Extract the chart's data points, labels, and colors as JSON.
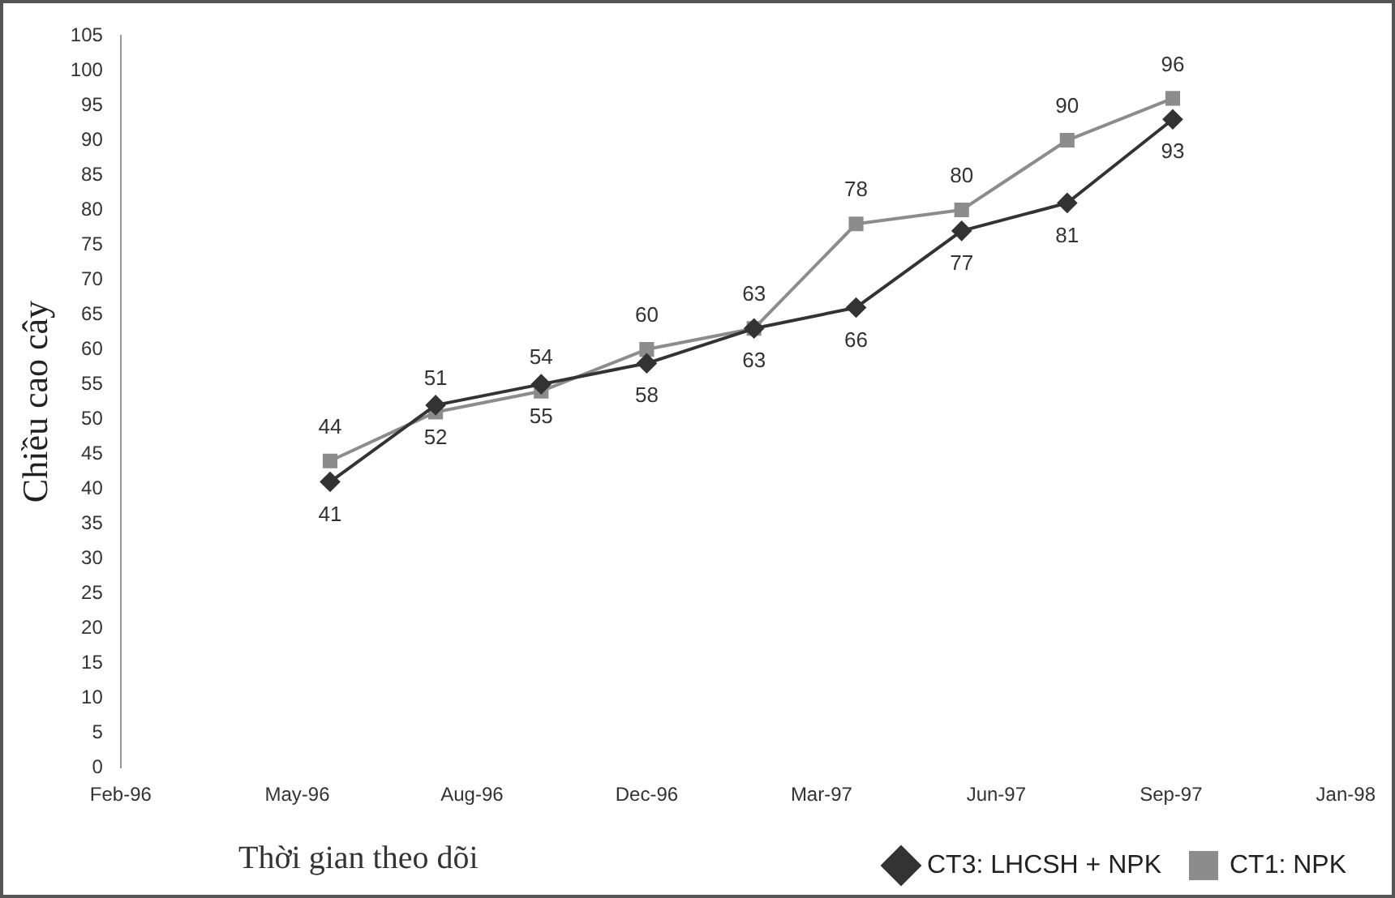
{
  "chart_data": {
    "type": "line",
    "xlabel": "Thời gian theo dõi",
    "ylabel": "Chiều cao cây",
    "x": [
      "1996-06-01",
      "1996-08-01",
      "1996-10-01",
      "1996-12-01",
      "1997-02-01",
      "1997-04-01",
      "1997-06-01",
      "1997-08-01",
      "1997-10-01"
    ],
    "xlim": [
      "1996-02-01",
      "1998-01-09"
    ],
    "xticks": [
      {
        "value": "1996-02-01",
        "label": "Feb-96"
      },
      {
        "value": "1996-05-13",
        "label": "May-96"
      },
      {
        "value": "1996-08-22",
        "label": "Aug-96"
      },
      {
        "value": "1996-12-01",
        "label": "Dec-96"
      },
      {
        "value": "1997-03-12",
        "label": "Mar-97"
      },
      {
        "value": "1997-06-21",
        "label": "Jun-97"
      },
      {
        "value": "1997-09-30",
        "label": "Sep-97"
      },
      {
        "value": "1998-01-09",
        "label": "Jan-98"
      }
    ],
    "ylim": [
      0,
      105
    ],
    "yticks": [
      0,
      5,
      10,
      15,
      20,
      25,
      30,
      35,
      40,
      45,
      50,
      55,
      60,
      65,
      70,
      75,
      80,
      85,
      90,
      95,
      100,
      105
    ],
    "series": [
      {
        "name": "CT3: LHCSH + NPK",
        "color": "#333333",
        "marker": "diamond",
        "values": [
          41,
          52,
          55,
          58,
          63,
          66,
          77,
          81,
          93
        ]
      },
      {
        "name": "CT1: NPK",
        "color": "#8c8c8c",
        "marker": "square",
        "values": [
          44,
          51,
          54,
          60,
          63,
          78,
          80,
          90,
          96
        ]
      }
    ],
    "data_labels": true,
    "grid": false,
    "legend": "bottom right",
    "line_style": "solid"
  }
}
